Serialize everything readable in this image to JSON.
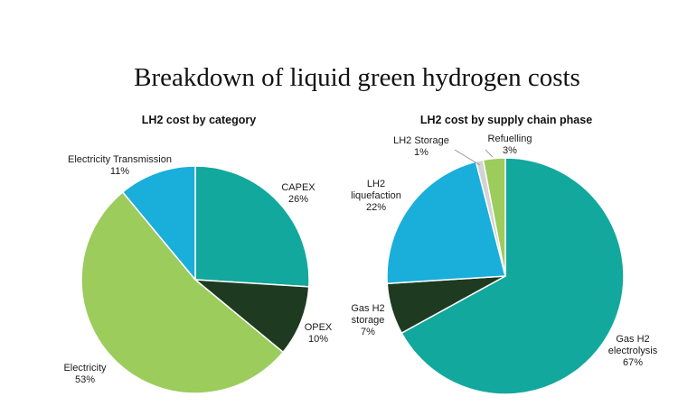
{
  "title": "Breakdown of liquid green hydrogen costs",
  "colors": {
    "teal": "#12A89D",
    "dark_green": "#1E3A20",
    "light_green": "#9BCC5C",
    "sky_blue": "#1AAEDB",
    "grey": "#D3D3D3"
  },
  "chart_data": [
    {
      "type": "pie",
      "title": "LH2 cost by category",
      "slices": [
        {
          "label": "CAPEX",
          "pct_label": "26%",
          "value": 26,
          "color": "#12A89D"
        },
        {
          "label": "OPEX",
          "pct_label": "10%",
          "value": 10,
          "color": "#1E3A20"
        },
        {
          "label": "Electricity",
          "pct_label": "53%",
          "value": 53,
          "color": "#9BCC5C"
        },
        {
          "label": "Electricity Transmission",
          "pct_label": "11%",
          "value": 11,
          "color": "#1AAEDB"
        }
      ]
    },
    {
      "type": "pie",
      "title": "LH2 cost by supply chain phase",
      "slices": [
        {
          "label": "Gas H2 electrolysis",
          "pct_label": "67%",
          "value": 67,
          "color": "#12A89D"
        },
        {
          "label": "Gas H2 storage",
          "pct_label": "7%",
          "value": 7,
          "color": "#1E3A20"
        },
        {
          "label": "LH2 liquefaction",
          "pct_label": "22%",
          "value": 22,
          "color": "#1AAEDB"
        },
        {
          "label": "LH2 Storage",
          "pct_label": "1%",
          "value": 1,
          "color": "#D3D3D3"
        },
        {
          "label": "Refuelling",
          "pct_label": "3%",
          "value": 3,
          "color": "#9BCC5C"
        }
      ]
    }
  ],
  "labels": {
    "capex": {
      "line1": "CAPEX",
      "line2": "26%"
    },
    "opex": {
      "line1": "OPEX",
      "line2": "10%"
    },
    "electricity": {
      "line1": "Electricity",
      "line2": "53%"
    },
    "transmission": {
      "line1": "Electricity Transmission",
      "line2": "11%"
    },
    "electrolysis": {
      "line1": "Gas H2",
      "line2": "electrolysis",
      "line3": "67%"
    },
    "gas_storage": {
      "line1": "Gas H2",
      "line2": "storage",
      "line3": "7%"
    },
    "liquefaction": {
      "line1": "LH2",
      "line2": "liquefaction",
      "line3": "22%"
    },
    "lh2_storage": {
      "line1": "LH2 Storage",
      "line2": "1%"
    },
    "refuelling": {
      "line1": "Refuelling",
      "line2": "3%"
    }
  }
}
